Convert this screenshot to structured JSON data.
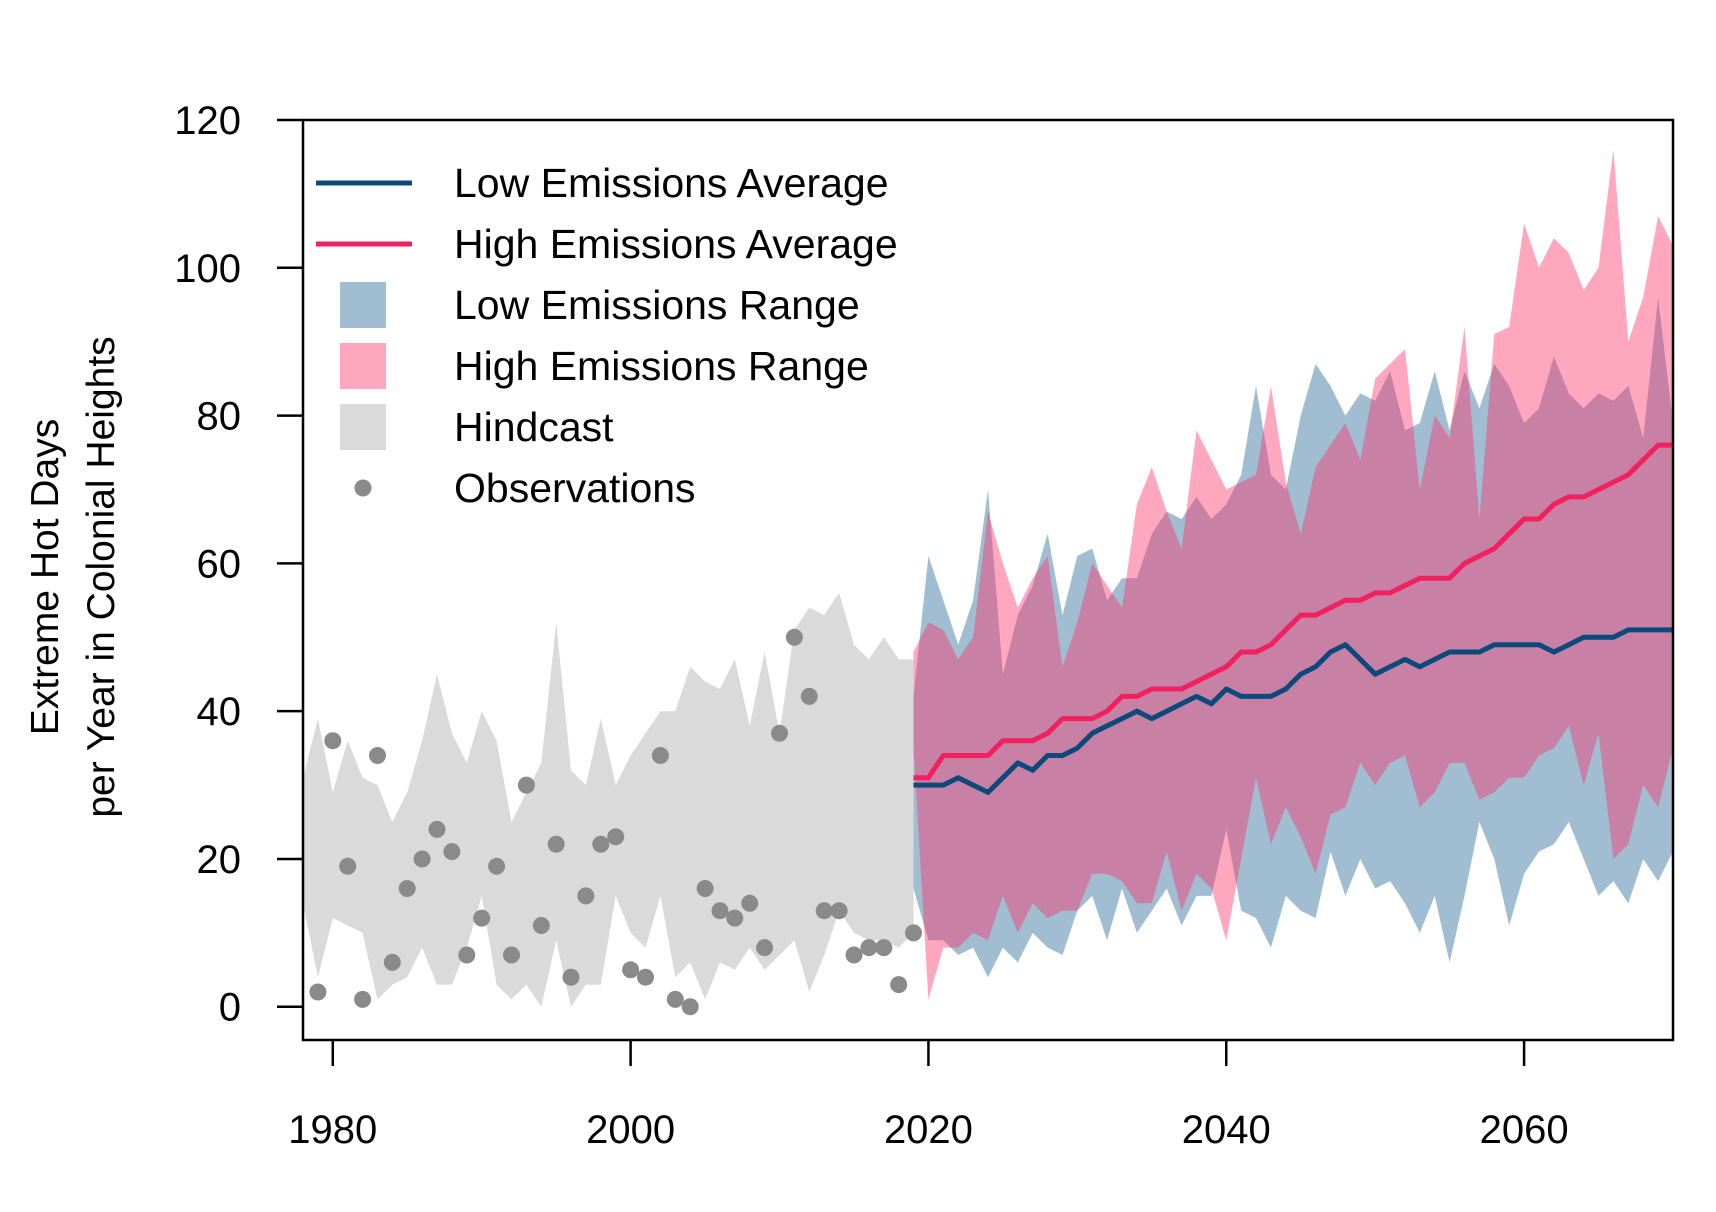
{
  "chart_data": {
    "type": "line",
    "title": "",
    "ylabel_lines": [
      "Extreme Hot Days",
      "per Year in Colonial Heights"
    ],
    "xlabel": "",
    "xlim": [
      1978,
      2070
    ],
    "ylim": [
      -4.5,
      120
    ],
    "x_ticks": [
      1980,
      2000,
      2020,
      2040,
      2060
    ],
    "y_ticks": [
      0,
      20,
      40,
      60,
      80,
      100,
      120
    ],
    "grid": false,
    "legend_position": "top-left",
    "colors": {
      "low_avg": "#0d4a7c",
      "high_avg": "#f0215e",
      "low_range": "#2f6c9c",
      "high_range": "#ff2e65",
      "hindcast": "#dadada",
      "observations": "#8a8a8a"
    },
    "legend": [
      {
        "label": "Low Emissions Average",
        "kind": "line",
        "color_key": "low_avg"
      },
      {
        "label": "High Emissions Average",
        "kind": "line",
        "color_key": "high_avg"
      },
      {
        "label": "Low Emissions Range",
        "kind": "fill",
        "color_key": "low_range",
        "opacity": 0.45
      },
      {
        "label": "High Emissions Range",
        "kind": "fill",
        "color_key": "high_range",
        "opacity": 0.42
      },
      {
        "label": "Hindcast",
        "kind": "fill",
        "color_key": "hindcast",
        "opacity": 1
      },
      {
        "label": "Observations",
        "kind": "point",
        "color_key": "observations"
      }
    ],
    "hindcast": {
      "x": [
        1978,
        1979,
        1980,
        1981,
        1982,
        1983,
        1984,
        1985,
        1986,
        1987,
        1988,
        1989,
        1990,
        1991,
        1992,
        1993,
        1994,
        1995,
        1996,
        1997,
        1998,
        1999,
        2000,
        2001,
        2002,
        2003,
        2004,
        2005,
        2006,
        2007,
        2008,
        2009,
        2010,
        2011,
        2012,
        2013,
        2014,
        2015,
        2016,
        2017,
        2018,
        2019
      ],
      "upper": [
        31,
        39,
        29,
        36,
        31,
        30,
        25,
        29,
        36,
        45,
        37,
        33,
        40,
        36,
        25,
        29,
        33,
        52,
        32,
        30,
        39,
        30,
        34,
        37,
        40,
        40,
        46,
        44,
        43,
        47,
        38,
        48,
        37,
        51,
        54,
        53,
        56,
        49,
        47,
        50,
        47,
        47
      ],
      "lower": [
        14,
        4,
        12,
        11,
        10,
        1,
        3,
        4,
        8,
        3,
        3,
        8,
        15,
        3,
        1,
        3,
        0,
        9,
        0,
        3,
        3,
        15,
        10,
        8,
        15,
        4,
        6,
        1,
        6,
        5,
        8,
        5,
        7,
        9,
        2,
        7,
        13,
        10,
        9,
        9,
        8,
        10
      ]
    },
    "observations": {
      "x": [
        1979,
        1980,
        1981,
        1982,
        1983,
        1984,
        1985,
        1986,
        1987,
        1988,
        1989,
        1990,
        1991,
        1992,
        1993,
        1994,
        1995,
        1996,
        1997,
        1998,
        1999,
        2000,
        2001,
        2002,
        2003,
        2004,
        2005,
        2006,
        2007,
        2008,
        2009,
        2010,
        2011,
        2012,
        2013,
        2014,
        2015,
        2016,
        2017,
        2018,
        2019
      ],
      "y": [
        2,
        36,
        19,
        1,
        34,
        6,
        16,
        20,
        24,
        21,
        7,
        12,
        19,
        7,
        30,
        11,
        22,
        4,
        15,
        22,
        23,
        5,
        4,
        34,
        1,
        0,
        16,
        13,
        12,
        14,
        8,
        37,
        50,
        42,
        13,
        13,
        7,
        8,
        8,
        3,
        10
      ]
    },
    "low_range": {
      "x": [
        2019,
        2020,
        2021,
        2022,
        2023,
        2024,
        2025,
        2026,
        2027,
        2028,
        2029,
        2030,
        2031,
        2032,
        2033,
        2034,
        2035,
        2036,
        2037,
        2038,
        2039,
        2040,
        2041,
        2042,
        2043,
        2044,
        2045,
        2046,
        2047,
        2048,
        2049,
        2050,
        2051,
        2052,
        2053,
        2054,
        2055,
        2056,
        2057,
        2058,
        2059,
        2060,
        2061,
        2062,
        2063,
        2064,
        2065,
        2066,
        2067,
        2068,
        2069,
        2070
      ],
      "upper": [
        42,
        61,
        55,
        49,
        55,
        70,
        45,
        53,
        57,
        64,
        53,
        61,
        62,
        55,
        58,
        58,
        64,
        67,
        66,
        69,
        66,
        68,
        72,
        84,
        72,
        70,
        80,
        87,
        84,
        80,
        83,
        82,
        86,
        78,
        79,
        86,
        78,
        86,
        81,
        87,
        84,
        79,
        81,
        88,
        83,
        81,
        83,
        82,
        84,
        77,
        96,
        79
      ],
      "lower": [
        16,
        9,
        9,
        7,
        8,
        4,
        8,
        6,
        10,
        8,
        7,
        13,
        15,
        9,
        16,
        10,
        13,
        16,
        11,
        15,
        15,
        24,
        13,
        12,
        8,
        15,
        13,
        12,
        21,
        15,
        20,
        16,
        17,
        14,
        10,
        15,
        6,
        15,
        25,
        20,
        11,
        18,
        21,
        22,
        25,
        20,
        15,
        17,
        14,
        20,
        17,
        21
      ]
    },
    "high_range": {
      "x": [
        2019,
        2020,
        2021,
        2022,
        2023,
        2024,
        2025,
        2026,
        2027,
        2028,
        2029,
        2030,
        2031,
        2032,
        2033,
        2034,
        2035,
        2036,
        2037,
        2038,
        2039,
        2040,
        2041,
        2042,
        2043,
        2044,
        2045,
        2046,
        2047,
        2048,
        2049,
        2050,
        2051,
        2052,
        2053,
        2054,
        2055,
        2056,
        2057,
        2058,
        2059,
        2060,
        2061,
        2062,
        2063,
        2064,
        2065,
        2066,
        2067,
        2068,
        2069,
        2070
      ],
      "upper": [
        48,
        52,
        51,
        47,
        50,
        67,
        60,
        54,
        58,
        61,
        46,
        52,
        60,
        57,
        54,
        68,
        73,
        67,
        62,
        78,
        74,
        70,
        71,
        72,
        84,
        71,
        64,
        73,
        76,
        79,
        74,
        85,
        87,
        89,
        70,
        80,
        77,
        92,
        66,
        91,
        92,
        106,
        100,
        104,
        102,
        97,
        100,
        116,
        90,
        96,
        107,
        103
      ],
      "lower": [
        35,
        1,
        8,
        8,
        10,
        9,
        15,
        10,
        14,
        12,
        13,
        13,
        18,
        18,
        17,
        14,
        14,
        21,
        13,
        18,
        16,
        9,
        20,
        31,
        22,
        27,
        23,
        18,
        26,
        27,
        33,
        30,
        33,
        34,
        27,
        29,
        33,
        33,
        28,
        29,
        31,
        31,
        34,
        35,
        38,
        30,
        37,
        20,
        22,
        30,
        27,
        35
      ]
    },
    "series": [
      {
        "name": "Low Emissions Average",
        "x": [
          2019,
          2020,
          2021,
          2022,
          2023,
          2024,
          2025,
          2026,
          2027,
          2028,
          2029,
          2030,
          2031,
          2032,
          2033,
          2034,
          2035,
          2036,
          2037,
          2038,
          2039,
          2040,
          2041,
          2042,
          2043,
          2044,
          2045,
          2046,
          2047,
          2048,
          2049,
          2050,
          2051,
          2052,
          2053,
          2054,
          2055,
          2056,
          2057,
          2058,
          2059,
          2060,
          2061,
          2062,
          2063,
          2064,
          2065,
          2066,
          2067,
          2068,
          2069,
          2070
        ],
        "values": [
          30,
          30,
          30,
          31,
          30,
          29,
          31,
          33,
          32,
          34,
          34,
          35,
          37,
          38,
          39,
          40,
          39,
          40,
          41,
          42,
          41,
          43,
          42,
          42,
          42,
          43,
          45,
          46,
          48,
          49,
          47,
          45,
          46,
          47,
          46,
          47,
          48,
          48,
          48,
          49,
          49,
          49,
          49,
          48,
          49,
          50,
          50,
          50,
          51,
          51,
          51,
          51
        ]
      },
      {
        "name": "High Emissions Average",
        "x": [
          2019,
          2020,
          2021,
          2022,
          2023,
          2024,
          2025,
          2026,
          2027,
          2028,
          2029,
          2030,
          2031,
          2032,
          2033,
          2034,
          2035,
          2036,
          2037,
          2038,
          2039,
          2040,
          2041,
          2042,
          2043,
          2044,
          2045,
          2046,
          2047,
          2048,
          2049,
          2050,
          2051,
          2052,
          2053,
          2054,
          2055,
          2056,
          2057,
          2058,
          2059,
          2060,
          2061,
          2062,
          2063,
          2064,
          2065,
          2066,
          2067,
          2068,
          2069,
          2070
        ],
        "values": [
          31,
          31,
          34,
          34,
          34,
          34,
          36,
          36,
          36,
          37,
          39,
          39,
          39,
          40,
          42,
          42,
          43,
          43,
          43,
          44,
          45,
          46,
          48,
          48,
          49,
          51,
          53,
          53,
          54,
          55,
          55,
          56,
          56,
          57,
          58,
          58,
          58,
          60,
          61,
          62,
          64,
          66,
          66,
          68,
          69,
          69,
          70,
          71,
          72,
          74,
          76,
          76
        ]
      }
    ]
  }
}
